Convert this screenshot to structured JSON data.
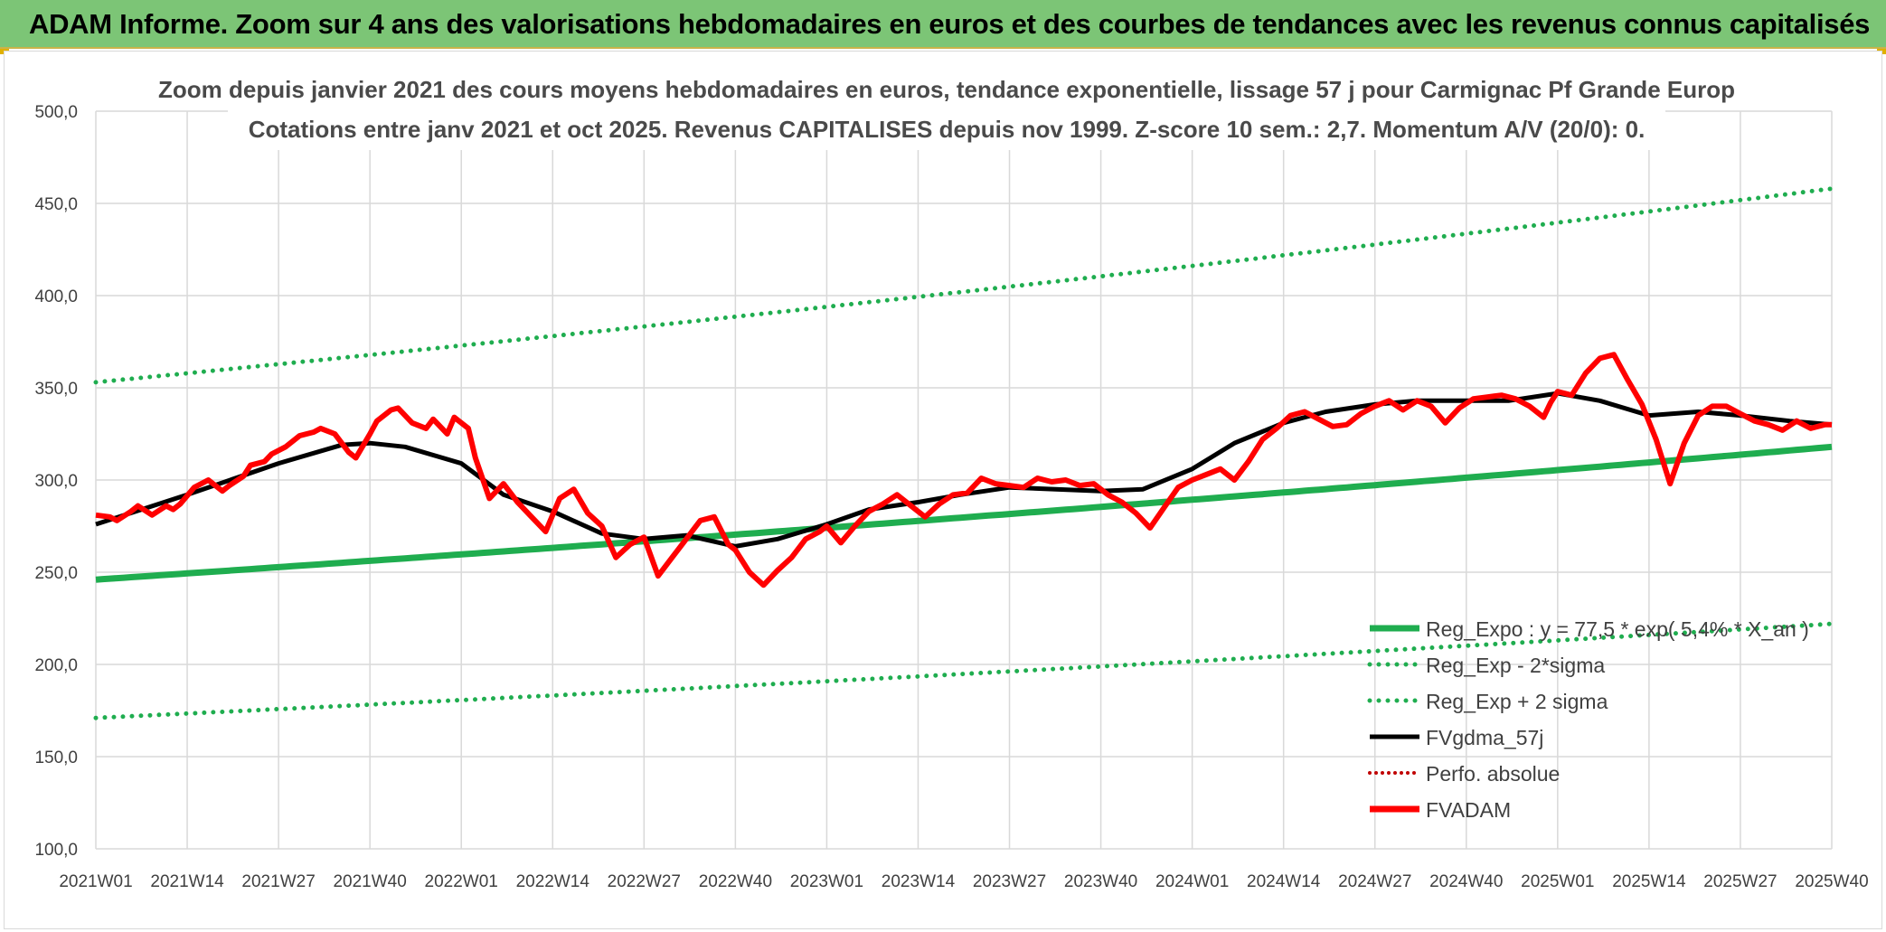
{
  "header": {
    "title": "ADAM Informe. Zoom sur 4 ans des valorisations hebdomadaires en euros et des courbes de tendances avec les revenus connus capitalisés"
  },
  "colors": {
    "banner": "#7cc576",
    "reg_expo": "#1fad4f",
    "fvgdma": "#000000",
    "fvadam": "#ff0000",
    "perfo": "#c00000",
    "grid": "#d9d9d9"
  },
  "chart_data": {
    "type": "line",
    "title_line1": "Zoom depuis janvier 2021 des cours moyens hebdomadaires en euros, tendance exponentielle, lissage 57 j pour Carmignac Pf Grande Europ",
    "title_line2": "Cotations entre janv 2021 et oct 2025. Revenus CAPITALISES depuis nov 1999. Z-score 10 sem.: 2,7. Momentum A/V (20/0): 0.",
    "ylim": [
      100,
      500
    ],
    "y_ticks": [
      "100,0",
      "150,0",
      "200,0",
      "250,0",
      "300,0",
      "350,0",
      "400,0",
      "450,0",
      "500,0"
    ],
    "x_ticks": [
      "2021W01",
      "2021W14",
      "2021W27",
      "2021W40",
      "2022W01",
      "2022W14",
      "2022W27",
      "2022W40",
      "2023W01",
      "2023W14",
      "2023W27",
      "2023W40",
      "2024W01",
      "2024W14",
      "2024W27",
      "2024W40",
      "2025W01",
      "2025W14",
      "2025W27",
      "2025W40"
    ],
    "grid": true,
    "legend_position": "bottom-right",
    "series": [
      {
        "name": "Reg_Expo : y = 77,5 * exp( 5,4% * X_an )",
        "style": "solid-green",
        "x": [
          0,
          247
        ],
        "values": [
          246,
          318
        ]
      },
      {
        "name": "Reg_Exp - 2*sigma",
        "style": "dotted-green",
        "x": [
          0,
          247
        ],
        "values": [
          171,
          222
        ]
      },
      {
        "name": "Reg_Exp + 2 sigma",
        "style": "dotted-green",
        "x": [
          0,
          247
        ],
        "values": [
          353,
          458
        ]
      },
      {
        "name": "FVgdma_57j",
        "style": "solid-black",
        "x": [
          0,
          13,
          26,
          35,
          39,
          44,
          52,
          58,
          65,
          72,
          78,
          84,
          91,
          97,
          104,
          110,
          117,
          123,
          130,
          143,
          149,
          156,
          162,
          169,
          175,
          182,
          188,
          195,
          201,
          208,
          214,
          221,
          228,
          234,
          241,
          247
        ],
        "values": [
          276,
          292,
          309,
          319,
          320,
          318,
          309,
          292,
          283,
          271,
          268,
          270,
          264,
          268,
          276,
          284,
          288,
          292,
          296,
          294,
          295,
          306,
          320,
          331,
          337,
          341,
          343,
          343,
          343,
          347,
          343,
          335,
          337,
          335,
          332,
          330
        ]
      },
      {
        "name": "Perfo. absolue",
        "style": "dotted-darkred",
        "x": [],
        "values": []
      },
      {
        "name": "FVADAM",
        "style": "solid-red",
        "x": [
          0,
          2,
          3,
          5,
          6,
          8,
          10,
          11,
          12,
          14,
          16,
          18,
          19,
          21,
          22,
          24,
          25,
          27,
          29,
          31,
          32,
          34,
          36,
          37,
          39,
          40,
          42,
          43,
          45,
          47,
          48,
          50,
          51,
          53,
          54,
          56,
          58,
          60,
          62,
          64,
          66,
          68,
          70,
          72,
          74,
          76,
          78,
          80,
          82,
          84,
          86,
          88,
          90,
          91,
          93,
          95,
          97,
          99,
          101,
          103,
          104,
          106,
          108,
          110,
          112,
          114,
          116,
          118,
          120,
          122,
          124,
          126,
          128,
          130,
          132,
          134,
          136,
          138,
          140,
          142,
          144,
          146,
          148,
          150,
          152,
          154,
          156,
          158,
          160,
          162,
          164,
          166,
          168,
          170,
          172,
          174,
          176,
          178,
          180,
          182,
          184,
          186,
          188,
          190,
          192,
          194,
          196,
          198,
          200,
          202,
          204,
          206,
          207,
          208,
          210,
          212,
          214,
          216,
          218,
          220,
          222,
          224,
          226,
          228,
          230,
          232,
          234,
          236,
          238,
          240,
          242,
          244,
          246,
          247
        ],
        "values": [
          281,
          280,
          278,
          283,
          286,
          281,
          286,
          284,
          287,
          296,
          300,
          294,
          297,
          302,
          308,
          310,
          314,
          318,
          324,
          326,
          328,
          325,
          315,
          312,
          325,
          332,
          338,
          339,
          331,
          328,
          333,
          325,
          334,
          328,
          312,
          290,
          298,
          288,
          280,
          272,
          290,
          295,
          282,
          275,
          258,
          265,
          269,
          248,
          258,
          268,
          278,
          280,
          265,
          262,
          250,
          243,
          251,
          258,
          268,
          272,
          275,
          266,
          275,
          283,
          287,
          292,
          286,
          280,
          287,
          292,
          293,
          301,
          298,
          297,
          296,
          301,
          299,
          300,
          297,
          298,
          292,
          288,
          282,
          274,
          285,
          296,
          300,
          303,
          306,
          300,
          310,
          322,
          328,
          335,
          337,
          333,
          329,
          330,
          336,
          340,
          343,
          338,
          343,
          340,
          331,
          339,
          344,
          345,
          346,
          344,
          340,
          334,
          342,
          348,
          346,
          358,
          366,
          368,
          354,
          341,
          322,
          298,
          320,
          335,
          340,
          340,
          336,
          332,
          330,
          327,
          332,
          328,
          330,
          330
        ]
      }
    ]
  }
}
